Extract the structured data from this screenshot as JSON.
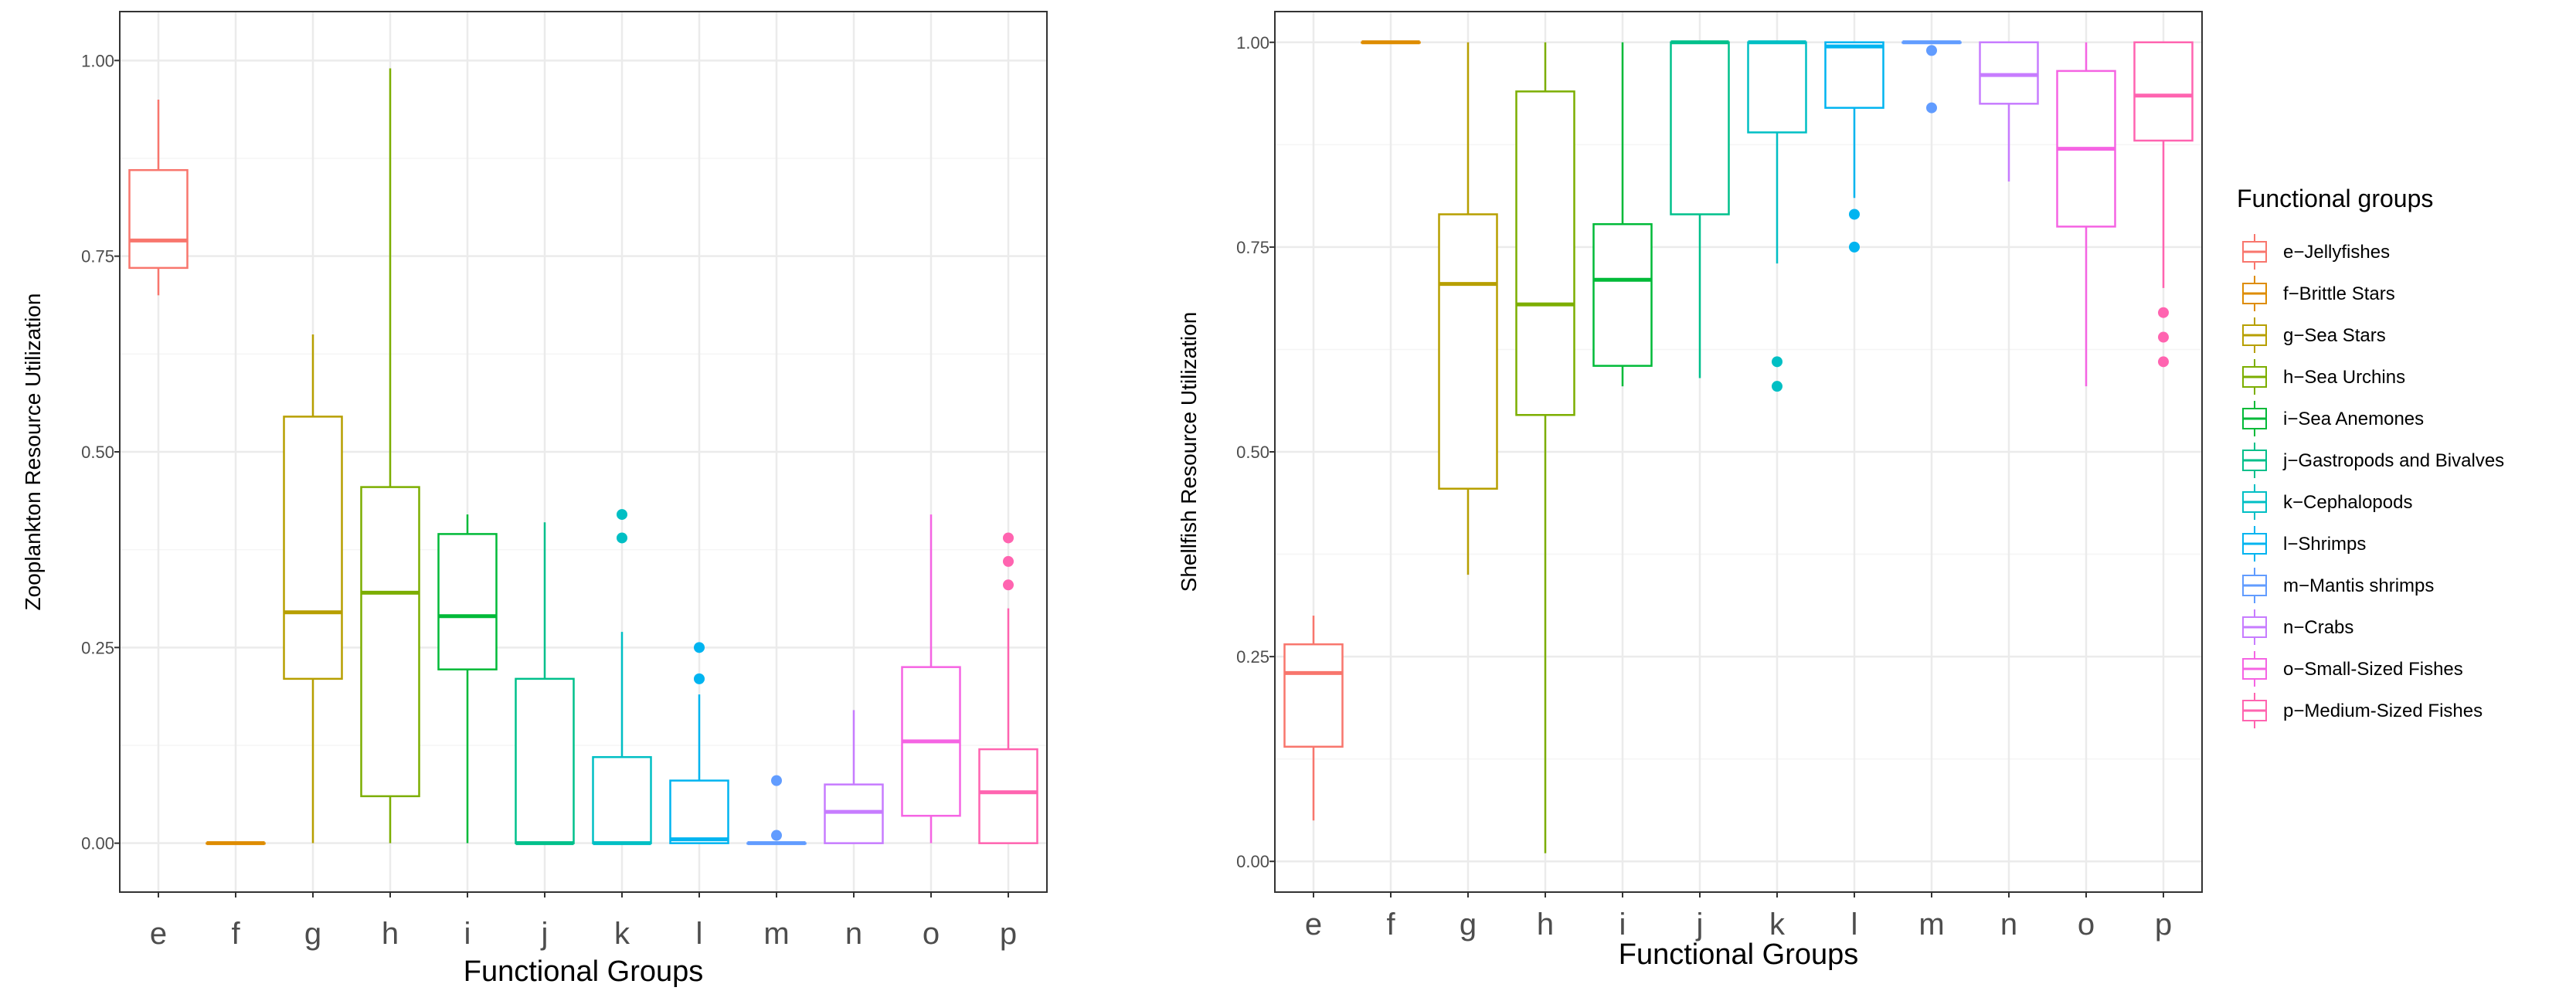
{
  "chart_data": [
    {
      "type": "box",
      "xlabel": "Functional Groups",
      "ylabel": "Zooplankton Resource Utilization",
      "ylim": [
        -0.0625,
        1.0625
      ],
      "y_ticks": [
        0.0,
        0.25,
        0.5,
        0.75,
        1.0
      ],
      "y_tick_labels": [
        "0.00",
        "0.25",
        "0.50",
        "0.75",
        "1.00"
      ],
      "categories": [
        "e",
        "f",
        "g",
        "h",
        "i",
        "j",
        "k",
        "l",
        "m",
        "n",
        "o",
        "p"
      ],
      "boxes": [
        {
          "group": "e",
          "lower_whisker": 0.7,
          "q1": 0.735,
          "median": 0.77,
          "q3": 0.86,
          "upper_whisker": 0.95,
          "outliers": []
        },
        {
          "group": "f",
          "lower_whisker": 0.0,
          "q1": 0.0,
          "median": 0.0,
          "q3": 0.0,
          "upper_whisker": 0.0,
          "outliers": []
        },
        {
          "group": "g",
          "lower_whisker": 0.0,
          "q1": 0.21,
          "median": 0.295,
          "q3": 0.545,
          "upper_whisker": 0.65,
          "outliers": []
        },
        {
          "group": "h",
          "lower_whisker": 0.0,
          "q1": 0.06,
          "median": 0.32,
          "q3": 0.455,
          "upper_whisker": 0.99,
          "outliers": []
        },
        {
          "group": "i",
          "lower_whisker": 0.0,
          "q1": 0.222,
          "median": 0.29,
          "q3": 0.395,
          "upper_whisker": 0.42,
          "outliers": []
        },
        {
          "group": "j",
          "lower_whisker": 0.0,
          "q1": 0.0,
          "median": 0.0,
          "q3": 0.21,
          "upper_whisker": 0.41,
          "outliers": []
        },
        {
          "group": "k",
          "lower_whisker": 0.0,
          "q1": 0.0,
          "median": 0.0,
          "q3": 0.11,
          "upper_whisker": 0.27,
          "outliers": [
            0.39,
            0.42
          ]
        },
        {
          "group": "l",
          "lower_whisker": 0.0,
          "q1": 0.0,
          "median": 0.005,
          "q3": 0.08,
          "upper_whisker": 0.19,
          "outliers": [
            0.21,
            0.25
          ]
        },
        {
          "group": "m",
          "lower_whisker": 0.0,
          "q1": 0.0,
          "median": 0.0,
          "q3": 0.0,
          "upper_whisker": 0.0,
          "outliers": [
            0.01,
            0.08
          ]
        },
        {
          "group": "n",
          "lower_whisker": 0.0,
          "q1": 0.0,
          "median": 0.04,
          "q3": 0.075,
          "upper_whisker": 0.17,
          "outliers": []
        },
        {
          "group": "o",
          "lower_whisker": 0.0,
          "q1": 0.035,
          "median": 0.13,
          "q3": 0.225,
          "upper_whisker": 0.42,
          "outliers": []
        },
        {
          "group": "p",
          "lower_whisker": 0.0,
          "q1": 0.0,
          "median": 0.065,
          "q3": 0.12,
          "upper_whisker": 0.3,
          "outliers": [
            0.33,
            0.36,
            0.39
          ]
        }
      ]
    },
    {
      "type": "box",
      "xlabel": "Functional Groups",
      "ylabel": "Shellfish Resource Utilization",
      "ylim": [
        -0.0375,
        1.0375
      ],
      "y_ticks": [
        0.0,
        0.25,
        0.5,
        0.75,
        1.0
      ],
      "y_tick_labels": [
        "0.00",
        "0.25",
        "0.50",
        "0.75",
        "1.00"
      ],
      "categories": [
        "e",
        "f",
        "g",
        "h",
        "i",
        "j",
        "k",
        "l",
        "m",
        "n",
        "o",
        "p"
      ],
      "boxes": [
        {
          "group": "e",
          "lower_whisker": 0.05,
          "q1": 0.14,
          "median": 0.23,
          "q3": 0.265,
          "upper_whisker": 0.3,
          "outliers": []
        },
        {
          "group": "f",
          "lower_whisker": 1.0,
          "q1": 1.0,
          "median": 1.0,
          "q3": 1.0,
          "upper_whisker": 1.0,
          "outliers": []
        },
        {
          "group": "g",
          "lower_whisker": 0.35,
          "q1": 0.455,
          "median": 0.705,
          "q3": 0.79,
          "upper_whisker": 1.0,
          "outliers": []
        },
        {
          "group": "h",
          "lower_whisker": 0.01,
          "q1": 0.545,
          "median": 0.68,
          "q3": 0.94,
          "upper_whisker": 1.0,
          "outliers": []
        },
        {
          "group": "i",
          "lower_whisker": 0.58,
          "q1": 0.605,
          "median": 0.71,
          "q3": 0.778,
          "upper_whisker": 1.0,
          "outliers": []
        },
        {
          "group": "j",
          "lower_whisker": 0.59,
          "q1": 0.79,
          "median": 1.0,
          "q3": 1.0,
          "upper_whisker": 1.0,
          "outliers": []
        },
        {
          "group": "k",
          "lower_whisker": 0.73,
          "q1": 0.89,
          "median": 1.0,
          "q3": 1.0,
          "upper_whisker": 1.0,
          "outliers": [
            0.58,
            0.61
          ]
        },
        {
          "group": "l",
          "lower_whisker": 0.81,
          "q1": 0.92,
          "median": 0.995,
          "q3": 1.0,
          "upper_whisker": 1.0,
          "outliers": [
            0.75,
            0.79
          ]
        },
        {
          "group": "m",
          "lower_whisker": 1.0,
          "q1": 1.0,
          "median": 1.0,
          "q3": 1.0,
          "upper_whisker": 1.0,
          "outliers": [
            0.92,
            0.99
          ]
        },
        {
          "group": "n",
          "lower_whisker": 0.83,
          "q1": 0.925,
          "median": 0.96,
          "q3": 1.0,
          "upper_whisker": 1.0,
          "outliers": []
        },
        {
          "group": "o",
          "lower_whisker": 0.58,
          "q1": 0.775,
          "median": 0.87,
          "q3": 0.965,
          "upper_whisker": 1.0,
          "outliers": []
        },
        {
          "group": "p",
          "lower_whisker": 0.7,
          "q1": 0.88,
          "median": 0.935,
          "q3": 1.0,
          "upper_whisker": 1.0,
          "outliers": [
            0.61,
            0.64,
            0.67
          ]
        }
      ]
    }
  ],
  "legend": {
    "title": "Functional groups",
    "placement": "right",
    "items": [
      {
        "key": "e",
        "label": "e−Jellyfishes",
        "color": "#F8766D"
      },
      {
        "key": "f",
        "label": "f−Brittle Stars",
        "color": "#DE8C00"
      },
      {
        "key": "g",
        "label": "g−Sea Stars",
        "color": "#B79F00"
      },
      {
        "key": "h",
        "label": "h−Sea Urchins",
        "color": "#7CAE00"
      },
      {
        "key": "i",
        "label": "i−Sea Anemones",
        "color": "#00BA38"
      },
      {
        "key": "j",
        "label": "j−Gastropods and Bivalves",
        "color": "#00C08B"
      },
      {
        "key": "k",
        "label": "k−Cephalopods",
        "color": "#00BFC4"
      },
      {
        "key": "l",
        "label": "l−Shrimps",
        "color": "#00B4F0"
      },
      {
        "key": "m",
        "label": "m−Mantis shrimps",
        "color": "#619CFF"
      },
      {
        "key": "n",
        "label": "n−Crabs",
        "color": "#C77CFF"
      },
      {
        "key": "o",
        "label": "o−Small-Sized Fishes",
        "color": "#F564E3"
      },
      {
        "key": "p",
        "label": "p−Medium-Sized Fishes",
        "color": "#FF64B0"
      }
    ]
  },
  "style": {
    "panel_background": "#FFFFFF",
    "grid_major": "#EBEBEB",
    "grid_minor": "#F5F5F5",
    "panel_border": "#333333",
    "tick_color": "#333333"
  }
}
